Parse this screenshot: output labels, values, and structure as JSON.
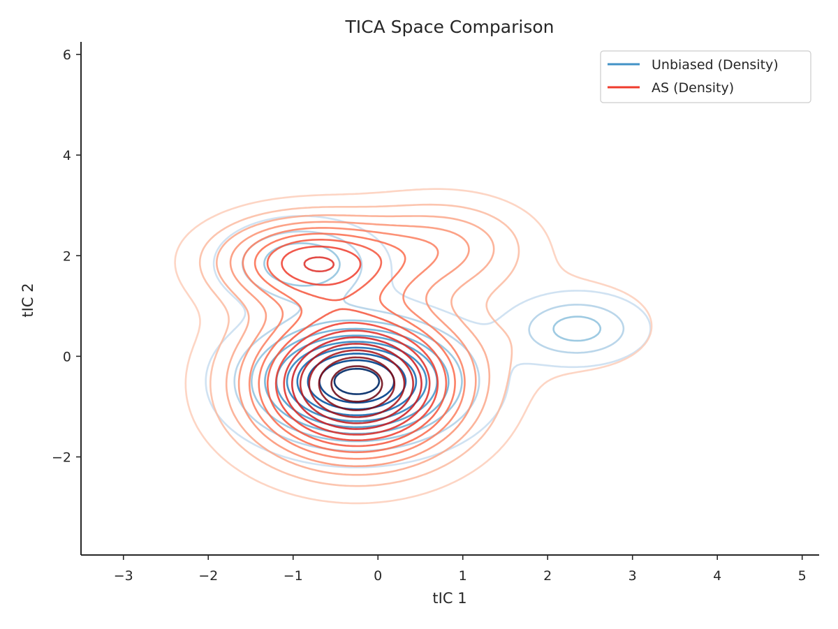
{
  "chart_data": {
    "type": "contour",
    "title": "TICA Space Comparison",
    "xlabel": "tIC 1",
    "ylabel": "tIC 2",
    "xlim": [
      -3.5,
      5.2
    ],
    "ylim": [
      -3.95,
      6.25
    ],
    "x_ticks": [
      -3,
      -2,
      -1,
      0,
      1,
      2,
      3,
      4,
      5
    ],
    "y_ticks": [
      -2,
      0,
      2,
      4,
      6
    ],
    "x_tick_labels": [
      "−3",
      "−2",
      "−1",
      "0",
      "1",
      "2",
      "3",
      "4",
      "5"
    ],
    "y_tick_labels": [
      "−2",
      "0",
      "2",
      "4",
      "6"
    ],
    "legend_position": "top-right",
    "grid": false,
    "series": [
      {
        "name": "Unbiased (Density)",
        "color": "#4292c6",
        "colormap": "Blues",
        "levels": 10,
        "modes": [
          {
            "cx": -0.25,
            "cy": -0.5,
            "sx": 0.75,
            "sy": 0.72,
            "weight": 1.0
          },
          {
            "cx": -0.9,
            "cy": 1.85,
            "sx": 0.55,
            "sy": 0.5,
            "weight": 0.35
          },
          {
            "cx": 2.35,
            "cy": 0.55,
            "sx": 0.48,
            "sy": 0.42,
            "weight": 0.3
          }
        ]
      },
      {
        "name": "AS (Density)",
        "color": "#ef3b2c",
        "colormap": "Reds",
        "levels": 14,
        "modes": [
          {
            "cx": -0.25,
            "cy": -0.55,
            "sx": 0.85,
            "sy": 1.0,
            "weight": 1.0
          },
          {
            "cx": -0.8,
            "cy": 1.9,
            "sx": 0.75,
            "sy": 0.6,
            "weight": 0.55
          },
          {
            "cx": 0.8,
            "cy": 2.2,
            "sx": 0.7,
            "sy": 0.65,
            "weight": 0.25
          },
          {
            "cx": 2.4,
            "cy": 0.6,
            "sx": 0.7,
            "sy": 0.7,
            "weight": 0.12
          }
        ]
      }
    ]
  }
}
